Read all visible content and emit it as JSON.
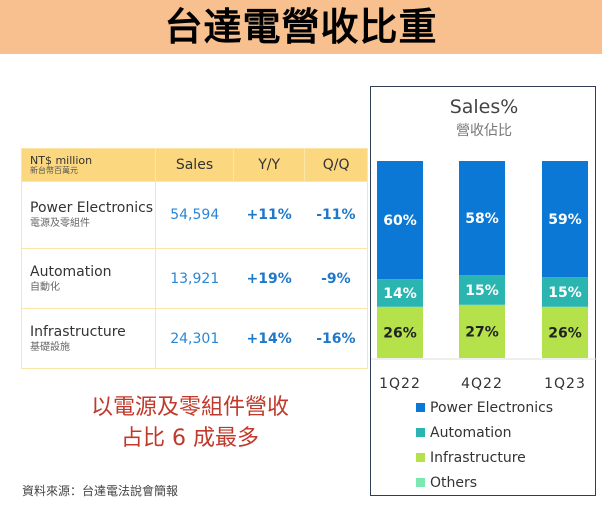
{
  "header": {
    "title": "台達電營收比重"
  },
  "table": {
    "unit_en": "NT$ million",
    "unit_zh": "新台幣百萬元",
    "columns": [
      "Sales",
      "Y/Y",
      "Q/Q"
    ],
    "rows": [
      {
        "name_en": "Power Electronics",
        "name_zh": "電源及零組件",
        "sales": "54,594",
        "yoy": "+11%",
        "qoq": "-11%"
      },
      {
        "name_en": "Automation",
        "name_zh": "自動化",
        "sales": "13,921",
        "yoy": "+19%",
        "qoq": "-9%"
      },
      {
        "name_en": "Infrastructure",
        "name_zh": "基礎設施",
        "sales": "24,301",
        "yoy": "+14%",
        "qoq": "-16%"
      }
    ]
  },
  "note": {
    "line1": "以電源及零組件營收",
    "line2": "占比 6 成最多"
  },
  "source": "資料來源：台達電法說會簡報",
  "chart_data": {
    "type": "bar",
    "stacked": true,
    "title": "Sales%",
    "subtitle": "營收佔比",
    "categories": [
      "1Q22",
      "4Q22",
      "1Q23"
    ],
    "series": [
      {
        "name": "Infrastructure",
        "values": [
          26,
          27,
          26
        ],
        "color": "#b5e14a",
        "label_color": "#222222"
      },
      {
        "name": "Automation",
        "values": [
          14,
          15,
          15
        ],
        "color": "#2bb5b0",
        "label_color": "#ffffff"
      },
      {
        "name": "Power Electronics",
        "values": [
          60,
          58,
          59
        ],
        "color": "#0a78d4",
        "label_color": "#ffffff"
      }
    ],
    "legend_order": [
      "Power Electronics",
      "Automation",
      "Infrastructure",
      "Others"
    ],
    "legend_colors": {
      "Power Electronics": "#0a78d4",
      "Automation": "#2bb5b0",
      "Infrastructure": "#b5e14a",
      "Others": "#7be8b0"
    },
    "ylim": [
      0,
      100
    ],
    "legend_position": "bottom",
    "grid": false
  }
}
